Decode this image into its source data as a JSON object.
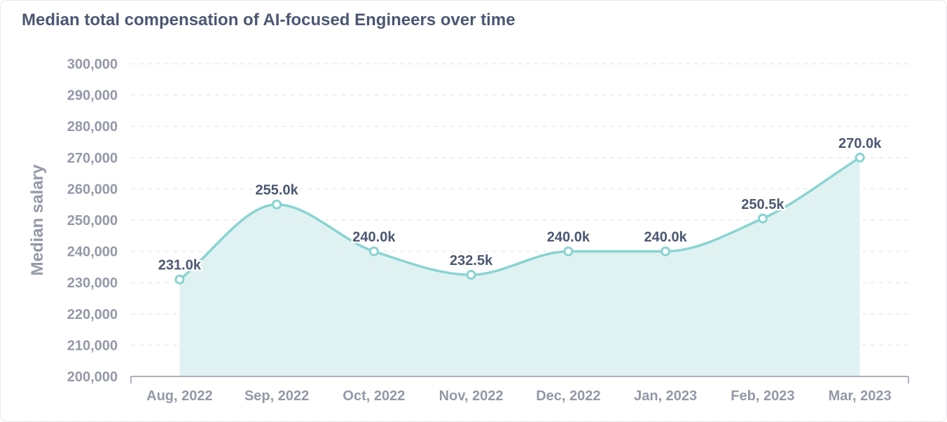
{
  "chart_data": {
    "type": "area",
    "title": "Median total compensation of AI-focused Engineers over time",
    "xlabel": "",
    "ylabel": "Median salary",
    "categories": [
      "Aug, 2022",
      "Sep, 2022",
      "Oct, 2022",
      "Nov, 2022",
      "Dec, 2022",
      "Jan, 2023",
      "Feb, 2023",
      "Mar, 2023"
    ],
    "series": [
      {
        "values": [
          231000,
          255000,
          240000,
          232500,
          240000,
          240000,
          250500,
          270000
        ],
        "labels": [
          "231.0k",
          "255.0k",
          "240.0k",
          "232.5k",
          "240.0k",
          "240.0k",
          "250.5k",
          "270.0k"
        ]
      }
    ],
    "ylim": [
      200000,
      300000
    ],
    "yticks": [
      "200,000",
      "210,000",
      "220,000",
      "230,000",
      "240,000",
      "250,000",
      "260,000",
      "270,000",
      "280,000",
      "290,000",
      "300,000"
    ],
    "grid": true,
    "colors": {
      "line": "#88d4d2",
      "fill": "#dff2f1",
      "text": "#4c5773",
      "axis": "#9499a8",
      "grid": "#e9ebee"
    }
  }
}
